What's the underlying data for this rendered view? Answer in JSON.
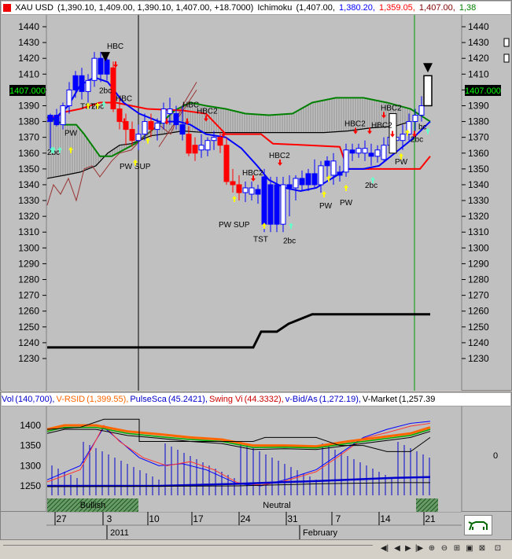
{
  "main_header": {
    "symbol": "XAU USD",
    "ohlc": "(1,390.10, 1,409.00, 1,390.10, 1,407.00, +18.7000)",
    "indicator": "Ichimoku",
    "ind_vals": [
      "(1,407.00,",
      "1,380.20,",
      "1,359.05,",
      "1,407.00,",
      "1,38"
    ],
    "ind_colors": [
      "#000000",
      "#0000ff",
      "#ff0000",
      "#800000",
      "#008000"
    ]
  },
  "price_axis": {
    "labels": [
      "1440",
      "1430",
      "1420",
      "1410",
      "1400",
      "1390",
      "1380",
      "1370",
      "1360",
      "1350",
      "1340",
      "1330",
      "1320",
      "1310",
      "1300",
      "1290",
      "1280",
      "1270",
      "1260",
      "1250",
      "1240",
      "1230"
    ],
    "last_price": "1407.000"
  },
  "annotations": {
    "hbc": "HBC",
    "hbc2": "HBC2",
    "tst": "TST",
    "pw": "PW",
    "pw_sup": "PW SUP",
    "two_bc": "2bc",
    "bc": "bc"
  },
  "ind_header": {
    "items": [
      {
        "label": "Vol",
        "value": "(140,700),",
        "color": "#0000cc"
      },
      {
        "label": "V-RSID",
        "value": "(1,399.55),",
        "color": "#ff6600"
      },
      {
        "label": "PulseSca",
        "value": "(45.2421),",
        "color": "#0000cc"
      },
      {
        "label": "Swing Vi",
        "value": "(44.3332),",
        "color": "#cc0000"
      },
      {
        "label": "v-Bid/As",
        "value": "(1,272.19),",
        "color": "#0000cc"
      },
      {
        "label": "V-Market",
        "value": "(1,257.39",
        "color": "#000000"
      }
    ]
  },
  "ind_axis": {
    "labels": [
      "1400",
      "1350",
      "1300",
      "1250"
    ],
    "right_label": "0",
    "bullish": "Bullish",
    "neutral": "Neutral"
  },
  "time_axis": {
    "days": [
      "27",
      "3",
      "10",
      "17",
      "24",
      "31",
      "7",
      "14",
      "21"
    ],
    "year": "2011",
    "month": "February"
  },
  "chart_data": {
    "type": "candlestick",
    "ylim": [
      1225,
      1447
    ],
    "y_ticks": [
      1440,
      1430,
      1420,
      1410,
      1400,
      1390,
      1380,
      1370,
      1360,
      1350,
      1340,
      1330,
      1320,
      1310,
      1300,
      1290,
      1280,
      1270,
      1260,
      1250,
      1240,
      1230
    ],
    "x_labels": [
      "27",
      "3",
      "10",
      "17",
      "24",
      "31",
      "7",
      "14",
      "21"
    ],
    "last_price": 1407.0,
    "series": [
      {
        "name": "Ichimoku",
        "values": []
      }
    ]
  }
}
